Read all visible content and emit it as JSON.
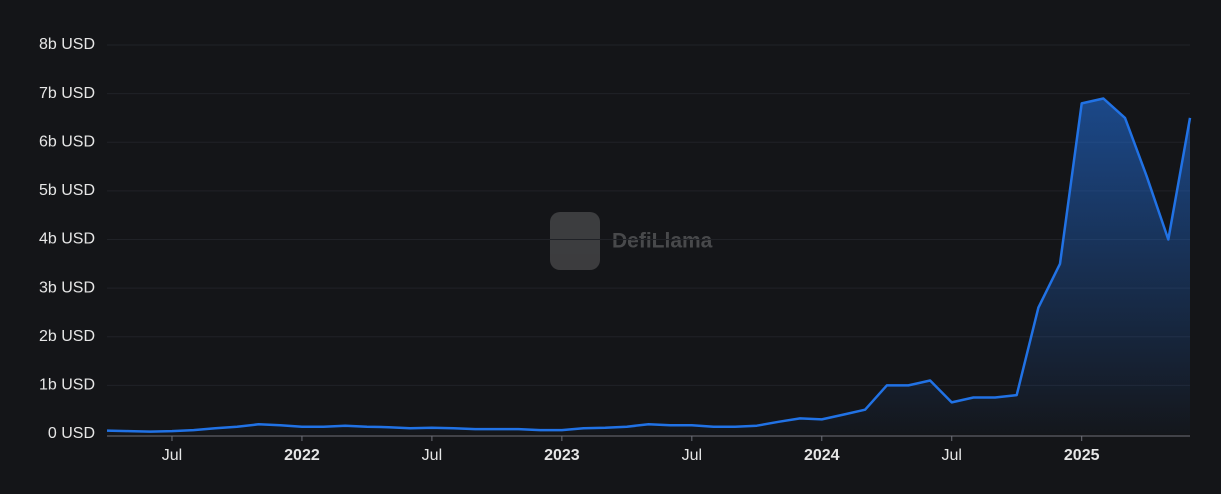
{
  "chart_data": {
    "type": "area",
    "watermark": "DefiLlama",
    "x": [
      "2021-04",
      "2021-05",
      "2021-06",
      "2021-07",
      "2021-08",
      "2021-09",
      "2021-10",
      "2021-11",
      "2021-12",
      "2022-01",
      "2022-02",
      "2022-03",
      "2022-04",
      "2022-05",
      "2022-06",
      "2022-07",
      "2022-08",
      "2022-09",
      "2022-10",
      "2022-11",
      "2022-12",
      "2023-01",
      "2023-02",
      "2023-03",
      "2023-04",
      "2023-05",
      "2023-06",
      "2023-07",
      "2023-08",
      "2023-09",
      "2023-10",
      "2023-11",
      "2023-12",
      "2024-01",
      "2024-02",
      "2024-03",
      "2024-04",
      "2024-05",
      "2024-06",
      "2024-07",
      "2024-08",
      "2024-09",
      "2024-10",
      "2024-11",
      "2024-12",
      "2025-01",
      "2025-02",
      "2025-03",
      "2025-04",
      "2025-05",
      "2025-06"
    ],
    "series": [
      {
        "color": "#2172e5",
        "values": [
          70000000.0,
          60000000.0,
          50000000.0,
          60000000.0,
          80000000.0,
          120000000.0,
          150000000.0,
          200000000.0,
          180000000.0,
          150000000.0,
          150000000.0,
          170000000.0,
          150000000.0,
          140000000.0,
          120000000.0,
          130000000.0,
          120000000.0,
          100000000.0,
          100000000.0,
          100000000.0,
          80000000.0,
          80000000.0,
          120000000.0,
          130000000.0,
          150000000.0,
          200000000.0,
          180000000.0,
          180000000.0,
          150000000.0,
          150000000.0,
          170000000.0,
          250000000.0,
          320000000.0,
          300000000.0,
          400000000.0,
          500000000.0,
          1000000000.0,
          1000000000.0,
          1100000000.0,
          650000000.0,
          750000000.0,
          750000000.0,
          800000000.0,
          2600000000.0,
          3500000000.0,
          6800000000.0,
          6900000000.0,
          6500000000.0,
          5300000000.0,
          4000000000.0,
          6500000000.0
        ]
      }
    ],
    "xlim": [
      "2021-04",
      "2025-06"
    ],
    "xticks": [
      {
        "value": "2021-07",
        "label": "Jul"
      },
      {
        "value": "2022-01",
        "label": "2022"
      },
      {
        "value": "2022-07",
        "label": "Jul"
      },
      {
        "value": "2023-01",
        "label": "2023"
      },
      {
        "value": "2023-07",
        "label": "Jul"
      },
      {
        "value": "2024-01",
        "label": "2024"
      },
      {
        "value": "2024-07",
        "label": "Jul"
      },
      {
        "value": "2025-01",
        "label": "2025"
      }
    ],
    "ylim": [
      0,
      8000000000.0
    ],
    "yticks": [
      {
        "value": 0,
        "label": "0 USD"
      },
      {
        "value": 1000000000.0,
        "label": "1b USD"
      },
      {
        "value": 2000000000.0,
        "label": "2b USD"
      },
      {
        "value": 3000000000.0,
        "label": "3b USD"
      },
      {
        "value": 4000000000.0,
        "label": "4b USD"
      },
      {
        "value": 5000000000.0,
        "label": "5b USD"
      },
      {
        "value": 6000000000.0,
        "label": "6b USD"
      },
      {
        "value": 7000000000.0,
        "label": "7b USD"
      },
      {
        "value": 8000000000.0,
        "label": "8b USD"
      }
    ],
    "grid": true
  }
}
